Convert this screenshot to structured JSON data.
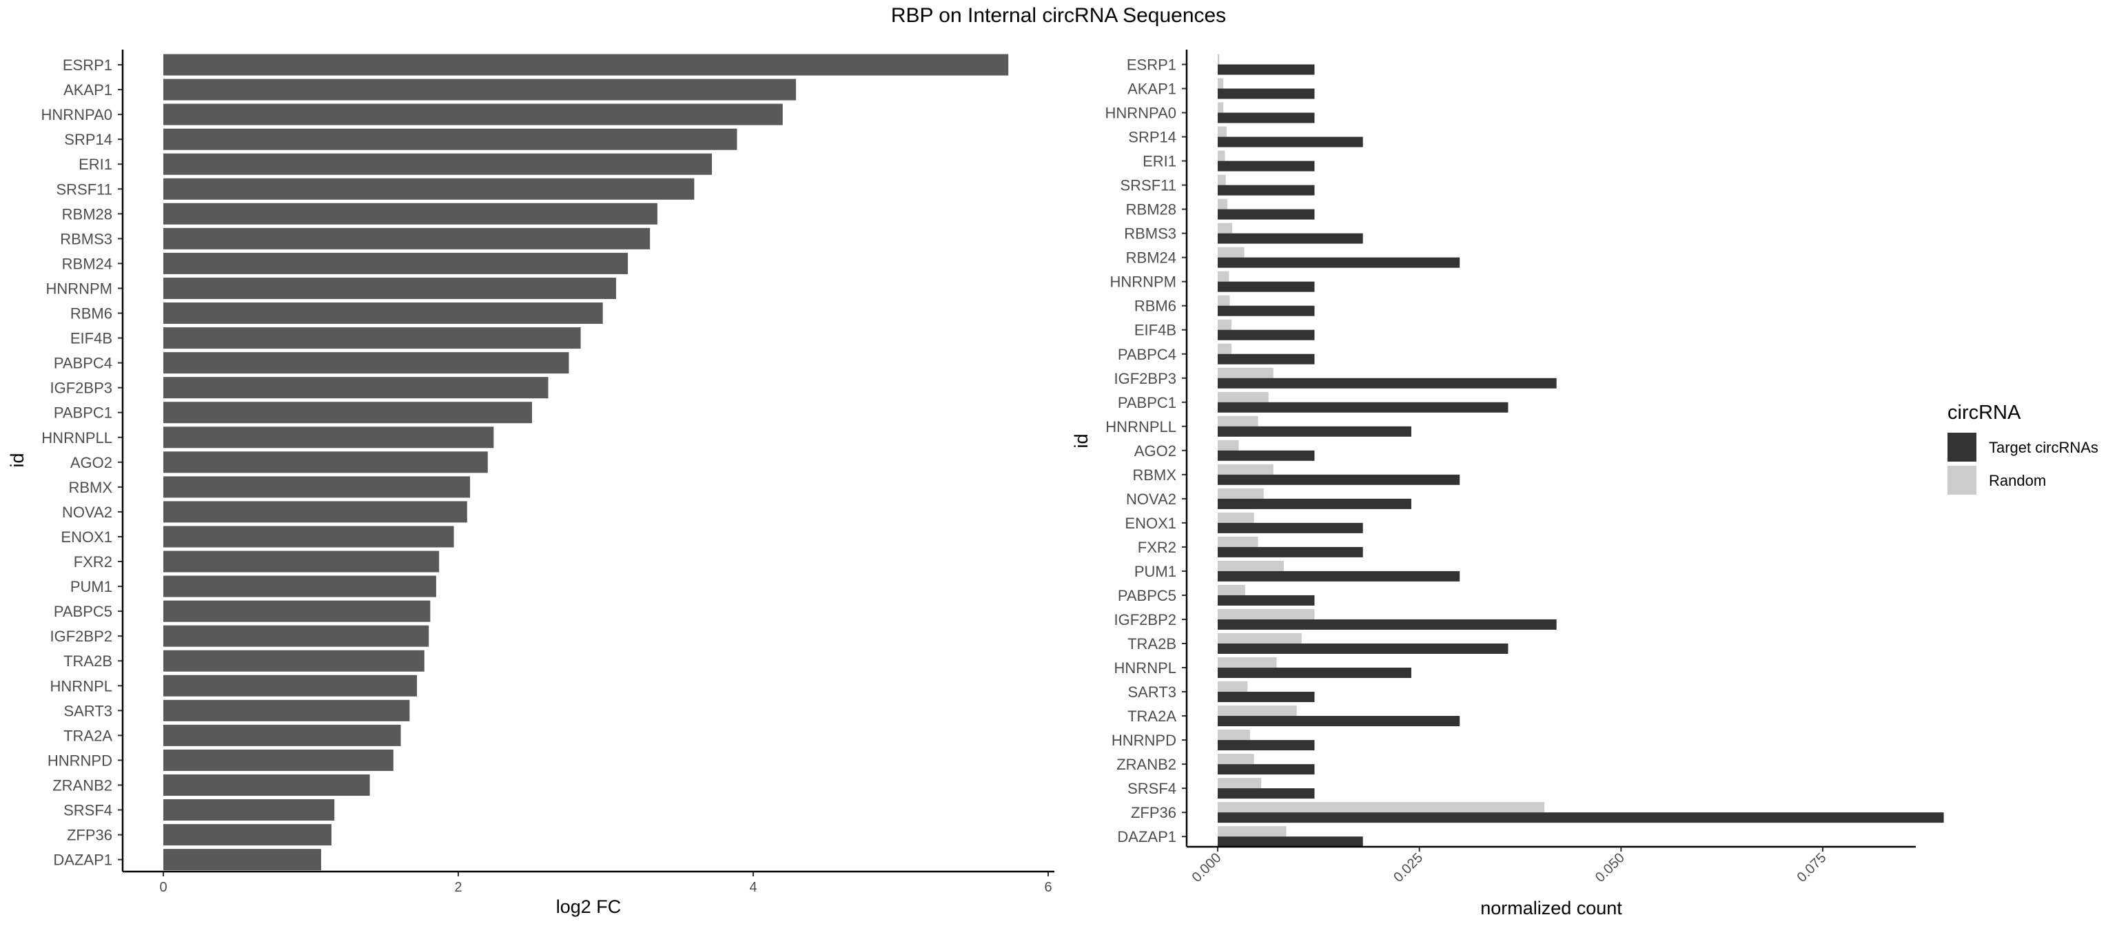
{
  "title": "RBP on Internal circRNA Sequences",
  "colors": {
    "bar_left": "#595959",
    "target": "#333333",
    "random": "#cccccc",
    "axis": "#000000",
    "tick_text": "#4d4d4d"
  },
  "legend": {
    "title": "circRNA",
    "items": [
      {
        "label": "Target circRNAs",
        "color": "#333333"
      },
      {
        "label": "Random",
        "color": "#cccccc"
      }
    ]
  },
  "chart_data": [
    {
      "type": "bar",
      "orientation": "horizontal",
      "title": "",
      "xlabel": "log2 FC",
      "ylabel": "id",
      "xlim": [
        0,
        6
      ],
      "xticks": [
        "0",
        "2",
        "4",
        "6"
      ],
      "grid": false,
      "categories": [
        "ESRP1",
        "AKAP1",
        "HNRNPA0",
        "SRP14",
        "ERI1",
        "SRSF11",
        "RBM28",
        "RBMS3",
        "RBM24",
        "HNRNPM",
        "RBM6",
        "EIF4B",
        "PABPC4",
        "IGF2BP3",
        "PABPC1",
        "HNRNPLL",
        "AGO2",
        "RBMX",
        "NOVA2",
        "ENOX1",
        "FXR2",
        "PUM1",
        "PABPC5",
        "IGF2BP2",
        "TRA2B",
        "HNRNPL",
        "SART3",
        "TRA2A",
        "HNRNPD",
        "ZRANB2",
        "SRSF4",
        "ZFP36",
        "DAZAP1"
      ],
      "values": [
        5.73,
        4.29,
        4.2,
        3.89,
        3.72,
        3.6,
        3.35,
        3.3,
        3.15,
        3.07,
        2.98,
        2.83,
        2.75,
        2.61,
        2.5,
        2.24,
        2.2,
        2.08,
        2.06,
        1.97,
        1.87,
        1.85,
        1.81,
        1.8,
        1.77,
        1.72,
        1.67,
        1.61,
        1.56,
        1.4,
        1.16,
        1.14,
        1.07
      ]
    },
    {
      "type": "bar",
      "orientation": "horizontal",
      "title": "",
      "xlabel": "normalized count",
      "ylabel": "id",
      "xlim": [
        0,
        0.095
      ],
      "xticks": [
        "0.000",
        "0.025",
        "0.050",
        "0.075"
      ],
      "grid": false,
      "legend_position": "right",
      "categories": [
        "ESRP1",
        "AKAP1",
        "HNRNPA0",
        "SRP14",
        "ERI1",
        "SRSF11",
        "RBM28",
        "RBMS3",
        "RBM24",
        "HNRNPM",
        "RBM6",
        "EIF4B",
        "PABPC4",
        "IGF2BP3",
        "PABPC1",
        "HNRNPLL",
        "AGO2",
        "RBMX",
        "NOVA2",
        "ENOX1",
        "FXR2",
        "PUM1",
        "PABPC5",
        "IGF2BP2",
        "TRA2B",
        "HNRNPL",
        "SART3",
        "TRA2A",
        "HNRNPD",
        "ZRANB2",
        "SRSF4",
        "ZFP36",
        "DAZAP1"
      ],
      "series": [
        {
          "name": "Target circRNAs",
          "values": [
            0.012,
            0.012,
            0.012,
            0.018,
            0.012,
            0.012,
            0.012,
            0.018,
            0.03,
            0.012,
            0.012,
            0.012,
            0.012,
            0.042,
            0.036,
            0.024,
            0.012,
            0.03,
            0.024,
            0.018,
            0.018,
            0.03,
            0.012,
            0.042,
            0.036,
            0.024,
            0.012,
            0.03,
            0.012,
            0.012,
            0.012,
            0.09,
            0.018
          ]
        },
        {
          "name": "Random",
          "values": [
            0.0002,
            0.0007,
            0.0007,
            0.0011,
            0.0009,
            0.001,
            0.0012,
            0.0018,
            0.0033,
            0.0014,
            0.0015,
            0.0017,
            0.0017,
            0.0069,
            0.0063,
            0.005,
            0.0026,
            0.0069,
            0.0057,
            0.0045,
            0.005,
            0.0082,
            0.0034,
            0.012,
            0.0104,
            0.0073,
            0.0037,
            0.0098,
            0.004,
            0.0045,
            0.0054,
            0.0405,
            0.0085
          ]
        }
      ]
    }
  ]
}
